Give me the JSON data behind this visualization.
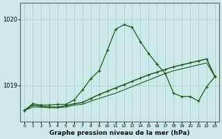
{
  "xlabel": "Graphe pression niveau de la mer (hPa)",
  "background_color": "#cce8e8",
  "grid_color": "#aacccc",
  "line_color": "#1a5c1a",
  "ylim": [
    1018.45,
    1020.25
  ],
  "xlim": [
    -0.5,
    23.5
  ],
  "yticks": [
    1019,
    1020
  ],
  "xticks": [
    0,
    1,
    2,
    3,
    4,
    5,
    6,
    7,
    8,
    9,
    10,
    11,
    12,
    13,
    14,
    15,
    16,
    17,
    18,
    19,
    20,
    21,
    22,
    23
  ],
  "line1_x": [
    0,
    1,
    2,
    3,
    4,
    5,
    6,
    7,
    8,
    9,
    10,
    11,
    12,
    13,
    14,
    15,
    16,
    17,
    18,
    19,
    20,
    21,
    22,
    23
  ],
  "line1_y": [
    1018.62,
    1018.72,
    1018.7,
    1018.7,
    1018.71,
    1018.71,
    1018.78,
    1018.93,
    1019.1,
    1019.22,
    1019.53,
    1019.85,
    1019.92,
    1019.88,
    1019.66,
    1019.48,
    1019.32,
    1019.18,
    1018.88,
    1018.83,
    1018.83,
    1018.76,
    1018.98,
    1019.13
  ],
  "line2_x": [
    0,
    1,
    2,
    3,
    4,
    5,
    6,
    7,
    8,
    9,
    10,
    11,
    12,
    13,
    14,
    15,
    16,
    17,
    18,
    19,
    20,
    21,
    22,
    23
  ],
  "line2_y": [
    1018.62,
    1018.7,
    1018.68,
    1018.67,
    1018.67,
    1018.69,
    1018.72,
    1018.74,
    1018.8,
    1018.86,
    1018.91,
    1018.96,
    1019.01,
    1019.06,
    1019.11,
    1019.16,
    1019.2,
    1019.24,
    1019.28,
    1019.31,
    1019.34,
    1019.37,
    1019.4,
    1019.13
  ],
  "line3_x": [
    0,
    1,
    2,
    3,
    4,
    5,
    6,
    7,
    8,
    9,
    10,
    11,
    12,
    13,
    14,
    15,
    16,
    17,
    18,
    19,
    20,
    21,
    22,
    23
  ],
  "line3_y": [
    1018.62,
    1018.67,
    1018.67,
    1018.66,
    1018.66,
    1018.67,
    1018.7,
    1018.71,
    1018.76,
    1018.8,
    1018.84,
    1018.88,
    1018.93,
    1018.98,
    1019.03,
    1019.08,
    1019.13,
    1019.18,
    1019.22,
    1019.25,
    1019.28,
    1019.31,
    1019.34,
    1019.13
  ]
}
